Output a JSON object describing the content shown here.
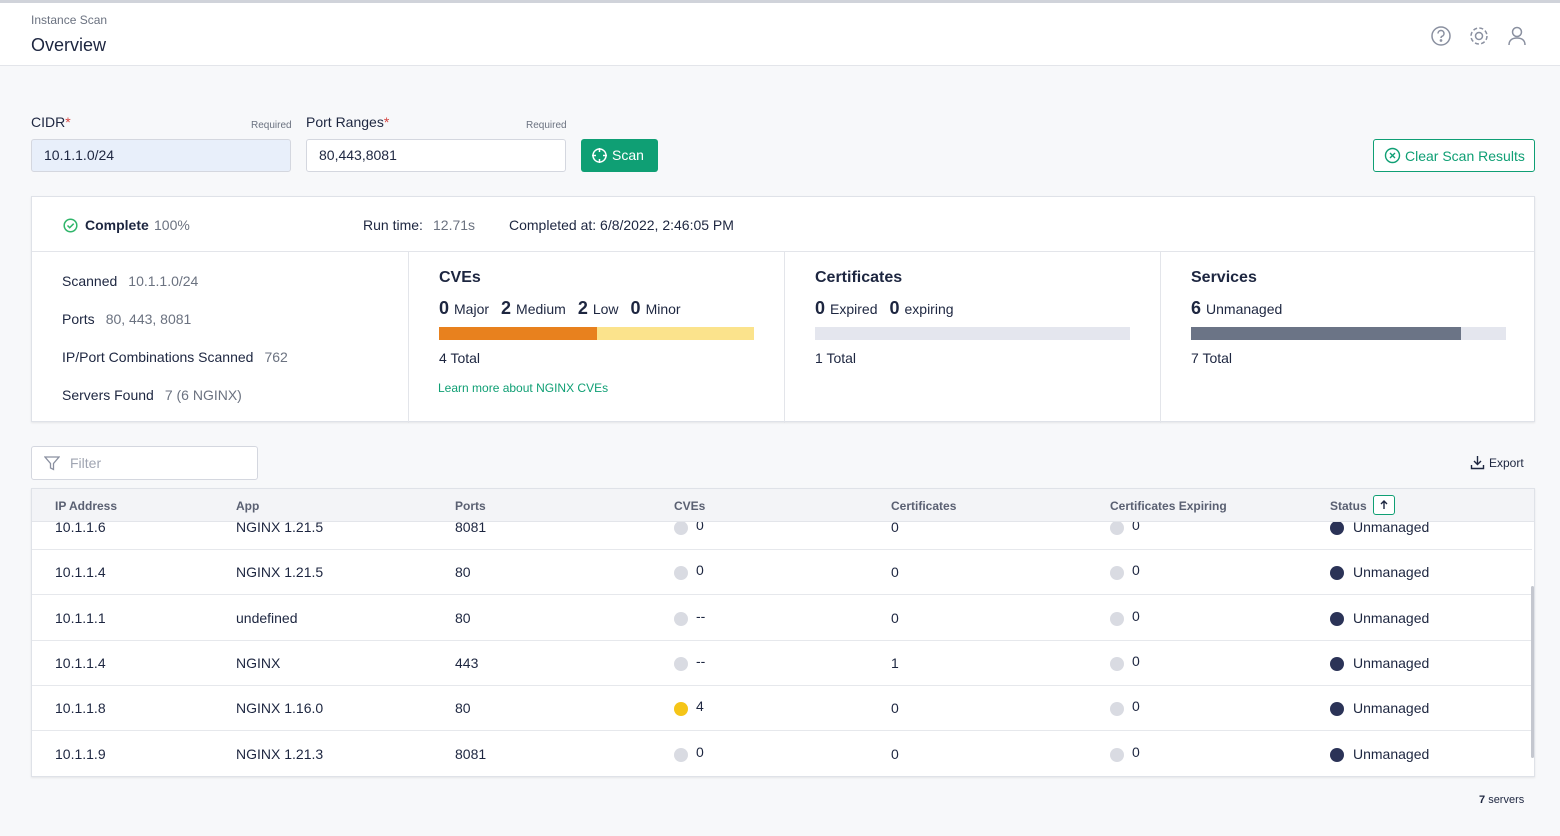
{
  "header": {
    "breadcrumb": "Instance Scan",
    "title": "Overview"
  },
  "form": {
    "fields": [
      {
        "label": "CIDR",
        "marker": "*",
        "hint": "Required",
        "value": "10.1.1.0/24"
      },
      {
        "label": "Port Ranges",
        "marker": "*",
        "hint": "Required",
        "value": "80,443,8081"
      }
    ],
    "scan_button": "Scan",
    "clear_button": "Clear Scan Results"
  },
  "status": {
    "state": "Complete",
    "progress": "100%",
    "runtime_label": "Run time:",
    "runtime": "12.71s",
    "completed": "Completed at: 6/8/2022, 2:46:05 PM"
  },
  "scan_info": [
    {
      "label": "Scanned",
      "value": "10.1.1.0/24"
    },
    {
      "label": "Ports",
      "value": "80, 443, 8081"
    },
    {
      "label": "IP/Port Combinations Scanned",
      "value": 762
    },
    {
      "label": "Servers Found",
      "value": "7 (6 NGINX)"
    }
  ],
  "panels": [
    {
      "title": "CVEs",
      "counts": [
        {
          "value": 0,
          "label": "Major",
          "color": "#d64541"
        },
        {
          "value": 2,
          "label": "Medium",
          "color": "#e8811e"
        },
        {
          "value": 2,
          "label": "Low",
          "color": "#fbe38c"
        },
        {
          "value": 0,
          "label": "Minor",
          "color": "#c9ccd6"
        }
      ],
      "total": {
        "value": 4,
        "label": "Total"
      },
      "link": "Learn more about NGINX CVEs"
    },
    {
      "title": "Certificates",
      "counts": [
        {
          "value": 0,
          "label": "Expired",
          "color": "#d64541"
        },
        {
          "value": 0,
          "label": "expiring",
          "color": "#e8811e"
        }
      ],
      "total": {
        "value": 1,
        "label": "Total"
      }
    },
    {
      "title": "Services",
      "counts": [
        {
          "value": 6,
          "label": "Unmanaged",
          "color": "#6b7486"
        }
      ],
      "total": {
        "value": 7,
        "label": "Total"
      }
    }
  ],
  "toolbar": {
    "filter": "Filter",
    "export": "Export"
  },
  "table": {
    "columns": [
      "IP Address",
      "App",
      "Ports",
      "CVEs",
      "Certificates",
      "Certificates Expiring",
      "Status"
    ],
    "rows": [
      [
        "10.1.1.6",
        "NGINX 1.21.5",
        8081,
        0,
        0,
        0,
        "Unmanaged"
      ],
      [
        "10.1.1.4",
        "NGINX 1.21.5",
        80,
        0,
        0,
        0,
        "Unmanaged"
      ],
      [
        "10.1.1.1",
        "undefined",
        80,
        "--",
        0,
        0,
        "Unmanaged"
      ],
      [
        "10.1.1.4",
        "NGINX",
        443,
        "--",
        1,
        0,
        "Unmanaged"
      ],
      [
        "10.1.1.8",
        "NGINX 1.16.0",
        80,
        4,
        0,
        0,
        "Unmanaged"
      ],
      [
        "10.1.1.9",
        "NGINX 1.21.3",
        8081,
        0,
        0,
        0,
        "Unmanaged"
      ]
    ]
  },
  "footer": {
    "count": 7,
    "label": "servers"
  }
}
